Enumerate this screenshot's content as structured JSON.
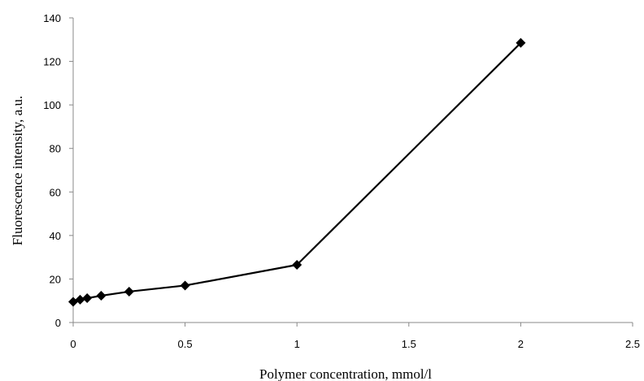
{
  "chart_data": {
    "type": "line",
    "title": "",
    "xlabel": "Polymer concentration, mmol/l",
    "ylabel": "Fluorescence intensity, a.u.",
    "xlim": [
      0,
      2.5
    ],
    "ylim": [
      0,
      140
    ],
    "x_ticks": [
      "0",
      "0.5",
      "1",
      "1.5",
      "2",
      "2.5"
    ],
    "y_ticks": [
      "0",
      "20",
      "40",
      "60",
      "80",
      "100",
      "120",
      "140"
    ],
    "grid": false,
    "legend": "none",
    "marker": "diamond",
    "line_color": "#000000",
    "series": [
      {
        "x": [
          0,
          0.031,
          0.0625,
          0.125,
          0.25,
          0.5,
          1,
          2
        ],
        "y": [
          9.5,
          10.5,
          11.2,
          12.3,
          14.2,
          17,
          26.5,
          128.5
        ]
      }
    ]
  }
}
